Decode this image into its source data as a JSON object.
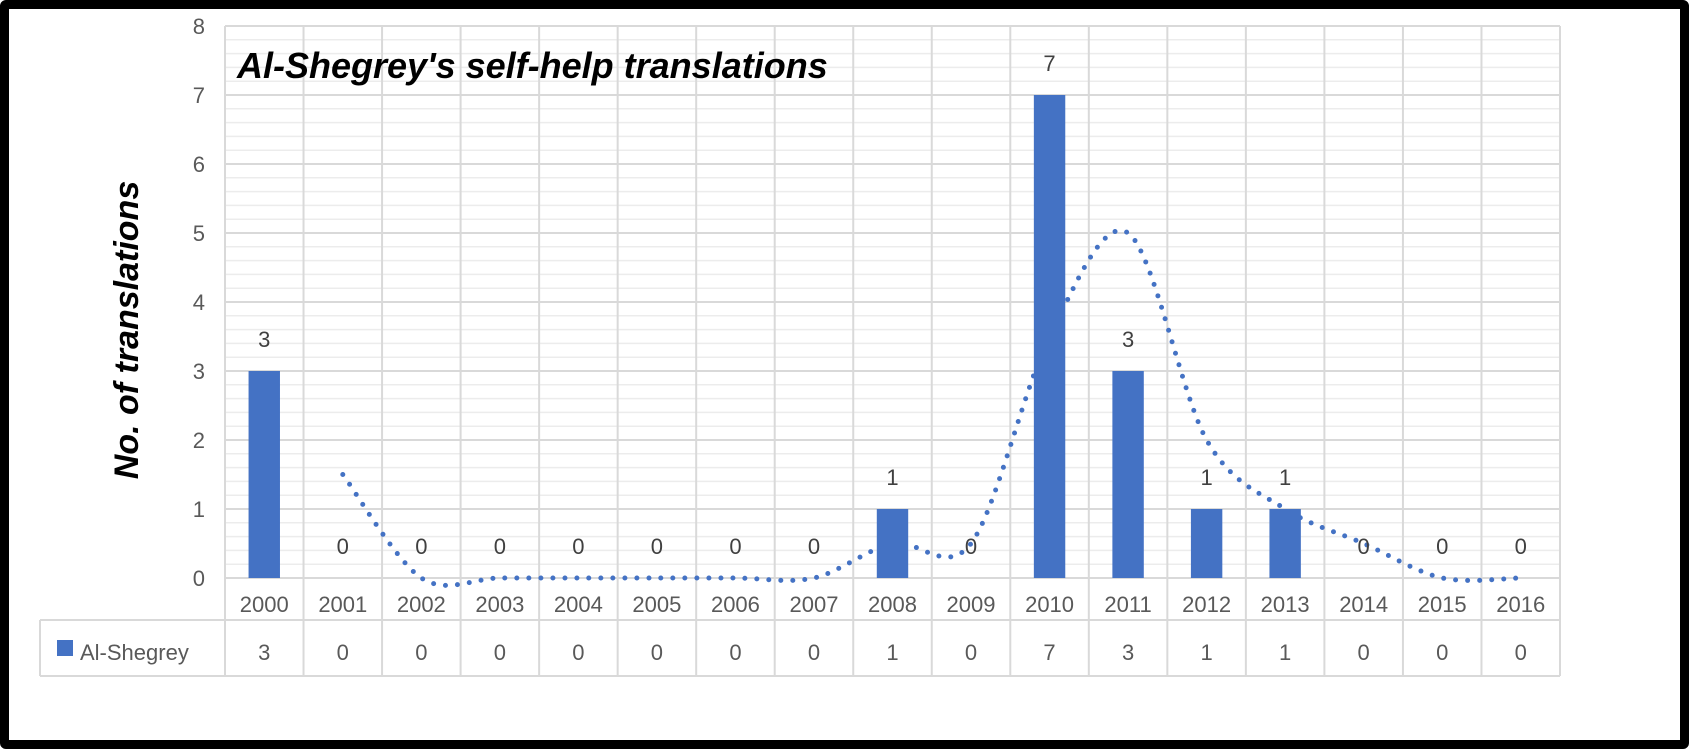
{
  "chart_data": {
    "type": "bar",
    "title": "Al-Shegrey's self-help translations",
    "xlabel": "",
    "ylabel": "No. of translations",
    "ylim": [
      0,
      8
    ],
    "yticks": [
      "0",
      "1",
      "2",
      "3",
      "4",
      "5",
      "6",
      "7",
      "8"
    ],
    "grid": true,
    "categories": [
      "2000",
      "2001",
      "2002",
      "2003",
      "2004",
      "2005",
      "2006",
      "2007",
      "2008",
      "2009",
      "2010",
      "2011",
      "2012",
      "2013",
      "2014",
      "2015",
      "2016"
    ],
    "series": [
      {
        "name": "Al-Shegrey",
        "color": "#4472C4",
        "values": [
          3,
          0,
          0,
          0,
          0,
          0,
          0,
          0,
          1,
          0,
          7,
          3,
          1,
          1,
          0,
          0,
          0
        ]
      }
    ],
    "trendline": {
      "type": "2-period moving average",
      "style": "dotted",
      "color": "#4472C4"
    },
    "data_table": true
  }
}
